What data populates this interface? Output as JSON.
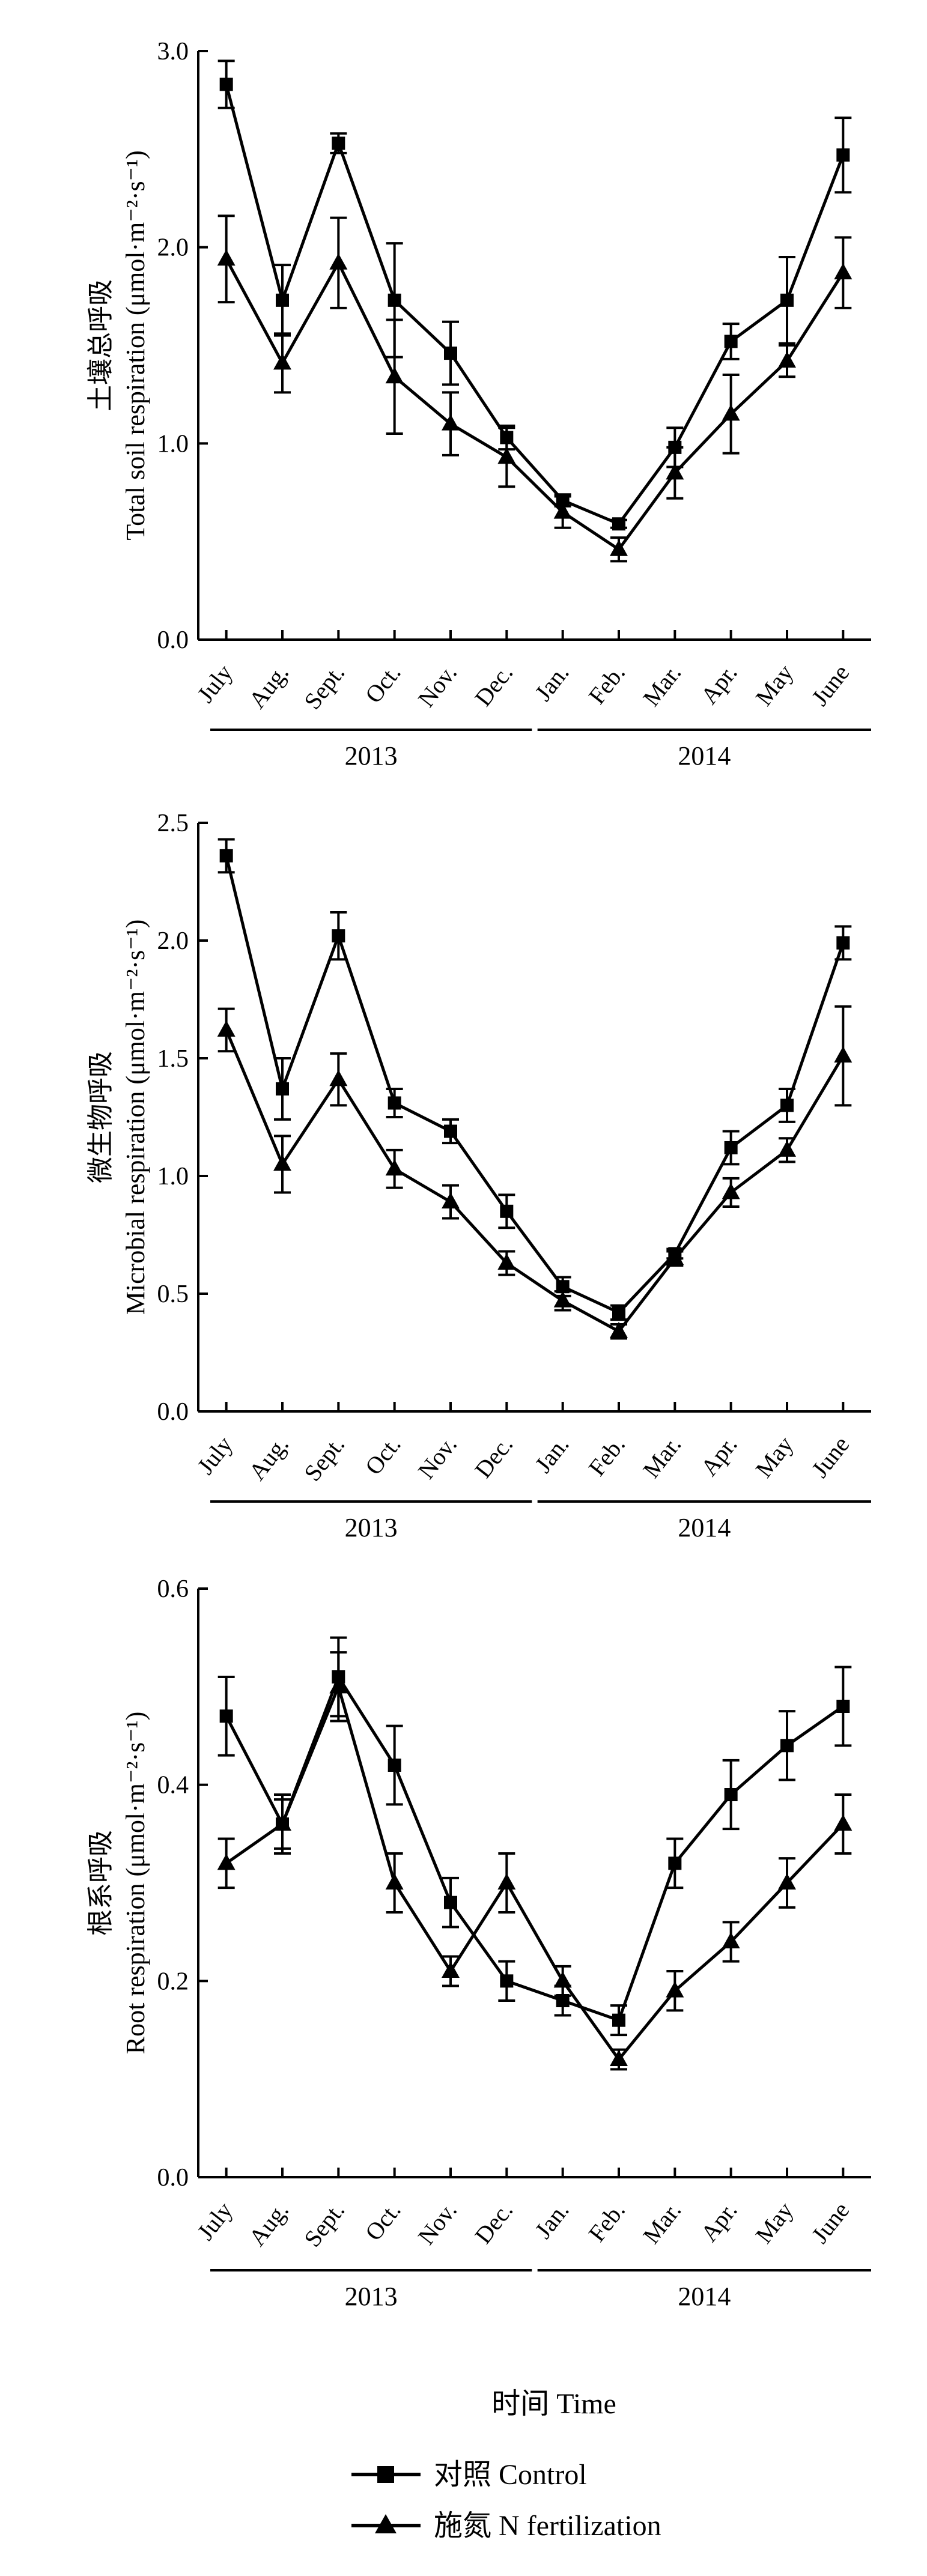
{
  "figure": {
    "xlabel": "时间 Time",
    "legend": [
      {
        "label": "对照 Control",
        "marker": "square"
      },
      {
        "label": "施氮 N fertilization",
        "marker": "triangle"
      }
    ],
    "colors": {
      "line": "#000000",
      "background": "#ffffff"
    }
  },
  "chart_data": [
    {
      "type": "line",
      "ylabel_cn": "土壤总呼吸",
      "ylabel_en": "Total soil respiration (μmol·m⁻²·s⁻¹)",
      "ylim": [
        0,
        3.0
      ],
      "yticks": [
        "0.0",
        "1.0",
        "2.0",
        "3.0"
      ],
      "ytick_values": [
        0,
        1,
        2,
        3
      ],
      "categories": [
        "July",
        "Aug.",
        "Sept.",
        "Oct.",
        "Nov.",
        "Dec.",
        "Jan.",
        "Feb.",
        "Mar.",
        "Apr.",
        "May",
        "June"
      ],
      "years": [
        "2013",
        "2014"
      ],
      "series": [
        {
          "name": "对照 Control",
          "marker": "square",
          "values": [
            2.83,
            1.73,
            2.53,
            1.73,
            1.46,
            1.03,
            0.71,
            0.59,
            0.98,
            1.52,
            1.73,
            2.47
          ],
          "errors": [
            0.12,
            0.18,
            0.05,
            0.29,
            0.16,
            0.06,
            0.03,
            0.02,
            0.1,
            0.09,
            0.22,
            0.19
          ]
        },
        {
          "name": "施氮 N fertilization",
          "marker": "triangle",
          "values": [
            1.94,
            1.41,
            1.92,
            1.34,
            1.1,
            0.93,
            0.65,
            0.46,
            0.85,
            1.15,
            1.42,
            1.87
          ],
          "errors": [
            0.22,
            0.15,
            0.23,
            0.29,
            0.16,
            0.15,
            0.08,
            0.06,
            0.13,
            0.2,
            0.08,
            0.18
          ]
        }
      ],
      "grid": false
    },
    {
      "type": "line",
      "ylabel_cn": "微生物呼吸",
      "ylabel_en": "Microbial respiration (μmol·m⁻²·s⁻¹)",
      "ylim": [
        0,
        2.5
      ],
      "yticks": [
        "0.0",
        "0.5",
        "1.0",
        "1.5",
        "2.0",
        "2.5"
      ],
      "ytick_values": [
        0,
        0.5,
        1.0,
        1.5,
        2.0,
        2.5
      ],
      "categories": [
        "July",
        "Aug.",
        "Sept.",
        "Oct.",
        "Nov.",
        "Dec.",
        "Jan.",
        "Feb.",
        "Mar.",
        "Apr.",
        "May",
        "June"
      ],
      "years": [
        "2013",
        "2014"
      ],
      "series": [
        {
          "name": "对照 Control",
          "marker": "square",
          "values": [
            2.36,
            1.37,
            2.02,
            1.31,
            1.19,
            0.85,
            0.53,
            0.42,
            0.67,
            1.12,
            1.3,
            1.99
          ],
          "errors": [
            0.07,
            0.13,
            0.1,
            0.06,
            0.05,
            0.07,
            0.04,
            0.03,
            0.02,
            0.07,
            0.07,
            0.07
          ]
        },
        {
          "name": "施氮 N fertilization",
          "marker": "triangle",
          "values": [
            1.62,
            1.05,
            1.41,
            1.03,
            0.89,
            0.63,
            0.47,
            0.34,
            0.65,
            0.93,
            1.11,
            1.51
          ],
          "errors": [
            0.09,
            0.12,
            0.11,
            0.08,
            0.07,
            0.05,
            0.04,
            0.03,
            0.03,
            0.06,
            0.05,
            0.21
          ]
        }
      ],
      "grid": false
    },
    {
      "type": "line",
      "ylabel_cn": "根系呼吸",
      "ylabel_en": "Root respiration (μmol·m⁻²·s⁻¹)",
      "ylim": [
        0,
        0.6
      ],
      "yticks": [
        "0.0",
        "0.2",
        "0.4",
        "0.6"
      ],
      "ytick_values": [
        0,
        0.2,
        0.4,
        0.6
      ],
      "categories": [
        "July",
        "Aug.",
        "Sept.",
        "Oct.",
        "Nov.",
        "Dec.",
        "Jan.",
        "Feb.",
        "Mar.",
        "Apr.",
        "May",
        "June"
      ],
      "years": [
        "2013",
        "2014"
      ],
      "series": [
        {
          "name": "对照 Control",
          "marker": "square",
          "values": [
            0.47,
            0.36,
            0.51,
            0.42,
            0.28,
            0.2,
            0.18,
            0.16,
            0.32,
            0.39,
            0.44,
            0.48
          ],
          "errors": [
            0.04,
            0.03,
            0.04,
            0.04,
            0.025,
            0.02,
            0.015,
            0.015,
            0.025,
            0.035,
            0.035,
            0.04
          ]
        },
        {
          "name": "施氮 N fertilization",
          "marker": "triangle",
          "values": [
            0.32,
            0.36,
            0.5,
            0.3,
            0.21,
            0.3,
            0.2,
            0.12,
            0.19,
            0.24,
            0.3,
            0.36
          ],
          "errors": [
            0.025,
            0.025,
            0.035,
            0.03,
            0.015,
            0.03,
            0.015,
            0.01,
            0.02,
            0.02,
            0.025,
            0.03
          ]
        }
      ],
      "grid": false
    }
  ]
}
